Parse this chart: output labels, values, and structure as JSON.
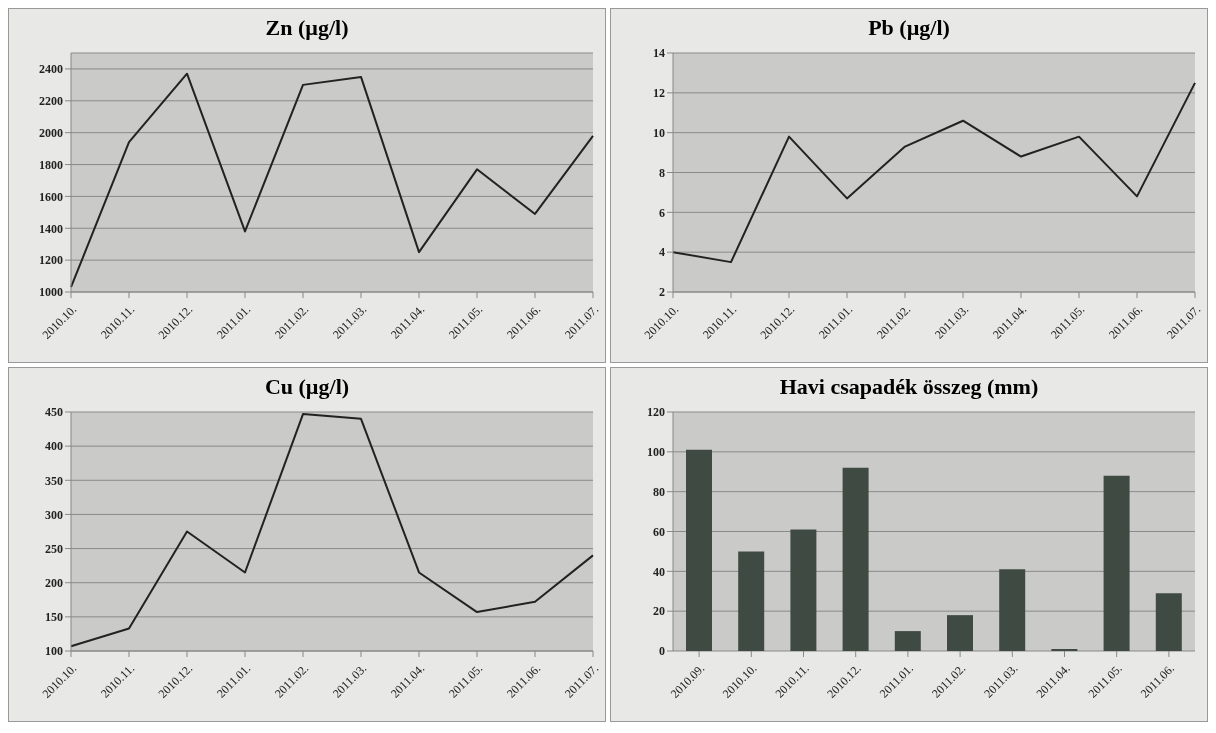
{
  "chart_data": [
    {
      "type": "line",
      "title": "Zn (µg/l)",
      "categories": [
        "2010.10.",
        "2010.11.",
        "2010.12.",
        "2011.01.",
        "2011.02.",
        "2011.03.",
        "2011.04.",
        "2011.05.",
        "2011.06.",
        "2011.07."
      ],
      "values": [
        1030,
        1940,
        2370,
        1380,
        2300,
        2350,
        1250,
        1770,
        1490,
        1980
      ],
      "color": "#222222",
      "ylim": [
        1000,
        2500
      ],
      "yticks": [
        1000,
        1200,
        1400,
        1600,
        1800,
        2000,
        2200,
        2400
      ],
      "grid": "y",
      "marker": "none"
    },
    {
      "type": "line",
      "title": "Pb (µg/l)",
      "categories": [
        "2010.10.",
        "2010.11.",
        "2010.12.",
        "2011.01.",
        "2011.02.",
        "2011.03.",
        "2011.04.",
        "2011.05.",
        "2011.06.",
        "2011.07."
      ],
      "values": [
        4.0,
        3.5,
        9.8,
        6.7,
        9.3,
        10.6,
        8.8,
        9.8,
        6.8,
        12.5
      ],
      "color": "#222222",
      "ylim": [
        2,
        14
      ],
      "yticks": [
        2,
        4,
        6,
        8,
        10,
        12,
        14
      ],
      "grid": "y",
      "marker": "none"
    },
    {
      "type": "line",
      "title": "Cu (µg/l)",
      "categories": [
        "2010.10.",
        "2010.11.",
        "2010.12.",
        "2011.01.",
        "2011.02.",
        "2011.03.",
        "2011.04.",
        "2011.05.",
        "2011.06.",
        "2011.07."
      ],
      "values": [
        107,
        133,
        275,
        215,
        447,
        440,
        215,
        157,
        172,
        240
      ],
      "color": "#222222",
      "ylim": [
        100,
        450
      ],
      "yticks": [
        100,
        150,
        200,
        250,
        300,
        350,
        400,
        450
      ],
      "grid": "y",
      "marker": "none"
    },
    {
      "type": "bar",
      "title": "Havi csapadék összeg (mm)",
      "categories": [
        "2010.09.",
        "2010.10.",
        "2010.11.",
        "2010.12.",
        "2011.01.",
        "2011.02.",
        "2011.03.",
        "2011.04.",
        "2011.05.",
        "2011.06."
      ],
      "values": [
        101,
        50,
        61,
        92,
        10,
        18,
        41,
        1,
        88,
        29
      ],
      "color": "#3f4b42",
      "ylim": [
        0,
        120
      ],
      "yticks": [
        0,
        20,
        40,
        60,
        80,
        100,
        120
      ],
      "grid": "y"
    }
  ]
}
